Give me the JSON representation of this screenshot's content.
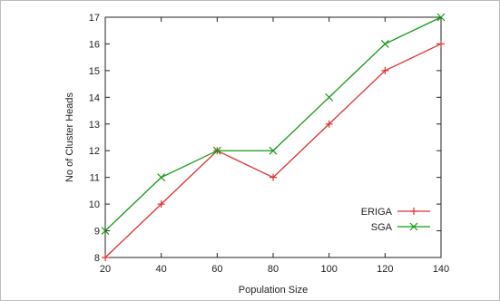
{
  "chart_data": {
    "type": "line",
    "xlabel": "Population Size",
    "ylabel": "No of Cluster Heads",
    "x": [
      20,
      40,
      60,
      80,
      100,
      120,
      140
    ],
    "xlim": [
      20,
      140
    ],
    "ylim": [
      8,
      17
    ],
    "x_ticks": [
      "20",
      "40",
      "60",
      "80",
      "100",
      "120",
      "140"
    ],
    "y_ticks": [
      "8",
      "9",
      "10",
      "11",
      "12",
      "13",
      "14",
      "15",
      "16",
      "17"
    ],
    "grid": false,
    "legend_position": "bottom-right",
    "series": [
      {
        "name": "ERIGA",
        "values": [
          8,
          10,
          12,
          11,
          13,
          15,
          16
        ],
        "color": "#e03030",
        "marker": "plus"
      },
      {
        "name": "SGA",
        "values": [
          9,
          11,
          12,
          12,
          14,
          16,
          17
        ],
        "color": "#159a15",
        "marker": "cross"
      }
    ]
  }
}
